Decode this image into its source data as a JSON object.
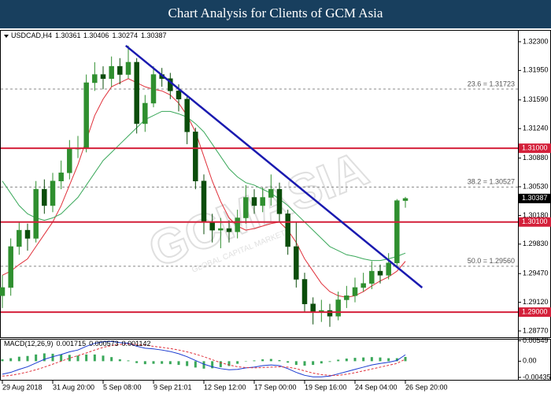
{
  "header": {
    "title": "Chart Analysis for Clients of GCM Asia"
  },
  "watermark": {
    "main": "GCMASIA",
    "sub": "GLOBAL CAPITAL MARKETS"
  },
  "chart_data": [
    {
      "type": "candlestick",
      "symbol": "USDCAD,H4",
      "categories": [
        "29 Aug 2018",
        null,
        null,
        null,
        null,
        null,
        "31 Aug 20:00",
        null,
        null,
        null,
        null,
        null,
        "5 Sep 08:00",
        null,
        null,
        null,
        null,
        null,
        "9 Sep 21:01",
        null,
        null,
        null,
        null,
        null,
        "12 Sep 12:00",
        null,
        null,
        null,
        null,
        null,
        "17 Sep 00:00",
        null,
        null,
        null,
        null,
        null,
        "19 Sep 16:00",
        null,
        null,
        null,
        null,
        null,
        "24 Sep 04:00",
        null,
        null,
        null,
        null,
        null,
        "26 Sep 20:00"
      ],
      "open": [
        1.292,
        1.293,
        1.298,
        1.3,
        1.299,
        1.305,
        1.303,
        1.306,
        1.307,
        1.31,
        1.31,
        1.318,
        1.319,
        1.3185,
        1.32,
        1.319,
        1.3205,
        1.313,
        1.3155,
        1.319,
        1.3185,
        1.317,
        1.316,
        1.312,
        1.306,
        1.301,
        1.3,
        1.3002,
        1.2998,
        1.3015,
        1.304,
        1.303,
        1.304,
        1.305,
        1.302,
        1.298,
        1.294,
        1.291,
        1.29,
        1.2902,
        1.2895,
        1.2915,
        1.292,
        1.293,
        1.2935,
        1.295,
        1.2945,
        1.296,
        1.30361
      ],
      "high": [
        1.2945,
        1.299,
        1.301,
        1.3008,
        1.306,
        1.3062,
        1.307,
        1.3085,
        1.311,
        1.3115,
        1.319,
        1.3205,
        1.32,
        1.3212,
        1.321,
        1.32252,
        1.321,
        1.3165,
        1.32,
        1.3198,
        1.3192,
        1.3178,
        1.3165,
        1.3125,
        1.3068,
        1.302,
        1.3015,
        1.3012,
        1.3025,
        1.3055,
        1.305,
        1.3052,
        1.3068,
        1.3058,
        1.3025,
        1.301,
        1.2948,
        1.2918,
        1.2915,
        1.291,
        1.2925,
        1.2932,
        1.2942,
        1.2948,
        1.2962,
        1.2958,
        1.2972,
        1.3038,
        1.30406
      ],
      "low": [
        1.2905,
        1.292,
        1.297,
        1.2975,
        1.2985,
        1.302,
        1.3022,
        1.305,
        1.3062,
        1.3088,
        1.3095,
        1.317,
        1.3172,
        1.3175,
        1.3178,
        1.3185,
        1.3118,
        1.312,
        1.315,
        1.3175,
        1.316,
        1.3145,
        1.3105,
        1.305,
        1.2995,
        1.2985,
        1.2978,
        1.2985,
        1.299,
        1.3008,
        1.302,
        1.3022,
        1.303,
        1.301,
        1.297,
        1.293,
        1.29,
        1.2885,
        1.2888,
        1.2882,
        1.289,
        1.2905,
        1.2912,
        1.2925,
        1.2928,
        1.2935,
        1.294,
        1.2955,
        1.30274
      ],
      "close": [
        1.293,
        1.298,
        1.3,
        1.299,
        1.305,
        1.303,
        1.306,
        1.307,
        1.31,
        1.31,
        1.318,
        1.319,
        1.3185,
        1.32,
        1.319,
        1.3205,
        1.313,
        1.3155,
        1.319,
        1.3185,
        1.317,
        1.316,
        1.312,
        1.306,
        1.301,
        1.3,
        1.3002,
        1.2998,
        1.3015,
        1.304,
        1.303,
        1.304,
        1.305,
        1.302,
        1.298,
        1.294,
        1.291,
        1.29,
        1.2902,
        1.2895,
        1.2915,
        1.292,
        1.293,
        1.2935,
        1.295,
        1.2945,
        1.296,
        1.30361,
        1.30387
      ],
      "bull_color": "#2f8f2f",
      "bear_color": "#0b4d0b",
      "moving_averages": [
        {
          "color": "#e0303a",
          "values": [
            1.2945,
            1.295,
            1.2958,
            1.2965,
            1.298,
            1.2995,
            1.301,
            1.303,
            1.3055,
            1.308,
            1.311,
            1.314,
            1.316,
            1.3175,
            1.318,
            1.3185,
            1.318,
            1.3175,
            1.3172,
            1.317,
            1.3165,
            1.3155,
            1.314,
            1.312,
            1.309,
            1.306,
            1.3035,
            1.3015,
            1.3005,
            1.3,
            1.3002,
            1.3005,
            1.3008,
            1.301,
            1.3,
            1.2985,
            1.2965,
            1.295,
            1.2935,
            1.2925,
            1.292,
            1.2918,
            1.292,
            1.2925,
            1.2932,
            1.2938,
            1.2943,
            1.295,
            1.2962
          ]
        },
        {
          "color": "#3aa85a",
          "values": [
            1.306,
            1.3045,
            1.303,
            1.302,
            1.3015,
            1.3012,
            1.3015,
            1.302,
            1.303,
            1.304,
            1.3055,
            1.307,
            1.3085,
            1.3095,
            1.3105,
            1.3115,
            1.3125,
            1.3135,
            1.314,
            1.3145,
            1.3145,
            1.3142,
            1.3138,
            1.313,
            1.312,
            1.3105,
            1.309,
            1.3075,
            1.3065,
            1.3058,
            1.3055,
            1.305,
            1.3045,
            1.3038,
            1.303,
            1.302,
            1.301,
            1.3,
            1.299,
            1.298,
            1.2975,
            1.297,
            1.2968,
            1.2965,
            1.2963,
            1.2963,
            1.2965,
            1.2968,
            1.2972
          ]
        }
      ],
      "trendline": {
        "color": "#1a1ab0",
        "x": [
          14.7,
          50
        ],
        "y": [
          1.32252,
          1.29299
        ]
      },
      "levels": [
        {
          "value": 1.31,
          "label": "1.31000"
        },
        {
          "value": 1.301,
          "label": "1.30100"
        },
        {
          "value": 1.29,
          "label": "1.29000"
        }
      ],
      "level_color": "#d4203a",
      "fibonacci": [
        {
          "value": 1.31723,
          "label": "23.6 = 1.31723"
        },
        {
          "value": 1.30527,
          "label": "38.2 = 1.30527"
        },
        {
          "value": 1.2956,
          "label": "50.0 = 1.29560"
        }
      ],
      "ylim": [
        1.28693,
        1.32444
      ],
      "yticks": [
        {
          "value": 1.323,
          "label": "1.32300"
        },
        {
          "value": 1.3195,
          "label": "1.31950"
        },
        {
          "value": 1.3159,
          "label": "1.31590"
        },
        {
          "value": 1.3124,
          "label": "1.31240"
        },
        {
          "value": 1.3088,
          "label": "1.30880"
        },
        {
          "value": 1.3053,
          "label": "1.30530"
        },
        {
          "value": 1.3018,
          "label": "1.30180"
        },
        {
          "value": 1.2983,
          "label": "1.29830"
        },
        {
          "value": 1.2947,
          "label": "1.29470"
        },
        {
          "value": 1.2912,
          "label": "1.29120"
        },
        {
          "value": 1.2877,
          "label": "1.28770"
        }
      ]
    },
    {
      "type": "macd",
      "label": "MACD(12,26,9)",
      "histogram_color": "#3aa85a",
      "main_color": "#1a3ad0",
      "signal_color": "#e0303a",
      "histogram": [
        0.0005,
        0.0008,
        0.0012,
        0.0014,
        0.0018,
        0.0021,
        0.002,
        0.0018,
        0.0017,
        0.0015,
        0.0018,
        0.0018,
        0.0015,
        0.0011,
        0.0005,
        0.0002,
        -0.0005,
        -0.0008,
        -0.0007,
        -0.0007,
        -0.0008,
        -0.001,
        -0.0013,
        -0.0017,
        -0.002,
        -0.0019,
        -0.0016,
        -0.0013,
        -0.0007,
        -0.0001,
        0.0002,
        0.0005,
        0.0006,
        0.0003,
        -0.0004,
        -0.001,
        -0.0012,
        -0.001,
        -0.0006,
        -0.0002,
        0.0004,
        0.0007,
        0.0009,
        0.001,
        0.0011,
        0.001,
        0.0008,
        0.0008,
        0.001142
      ],
      "main": [
        -0.0035,
        -0.003,
        -0.0022,
        -0.0015,
        -0.0005,
        0.0005,
        0.0012,
        0.0018,
        0.0025,
        0.003,
        0.004,
        0.0048,
        0.0052,
        0.0053,
        0.005,
        0.0048,
        0.004,
        0.0035,
        0.0033,
        0.003,
        0.0026,
        0.002,
        0.0012,
        0.0002,
        -0.0008,
        -0.0015,
        -0.002,
        -0.0023,
        -0.0022,
        -0.0018,
        -0.0016,
        -0.0012,
        -0.001,
        -0.0012,
        -0.002,
        -0.003,
        -0.0038,
        -0.0042,
        -0.0042,
        -0.004,
        -0.0034,
        -0.0028,
        -0.0022,
        -0.0016,
        -0.001,
        -0.0006,
        -0.0003,
        0.0002,
        0.001715
      ],
      "signal": [
        -0.004,
        -0.0038,
        -0.0034,
        -0.0029,
        -0.0023,
        -0.0016,
        -0.0008,
        0.0,
        0.0008,
        0.0015,
        0.0022,
        0.003,
        0.0037,
        0.0042,
        0.0045,
        0.0046,
        0.0045,
        0.0043,
        0.004,
        0.0037,
        0.0034,
        0.003,
        0.0025,
        0.0019,
        0.0012,
        0.0004,
        -0.0004,
        -0.001,
        -0.0015,
        -0.0017,
        -0.0018,
        -0.0017,
        -0.0016,
        -0.0015,
        -0.0016,
        -0.002,
        -0.0026,
        -0.0032,
        -0.0036,
        -0.0038,
        -0.0038,
        -0.0035,
        -0.0031,
        -0.0026,
        -0.0021,
        -0.0016,
        -0.0011,
        -0.0006,
        0.000573
      ],
      "ylim": [
        -0.005,
        0.006
      ],
      "yticks": [
        0.00549,
        {
          "value": 0,
          "label": "0.00"
        },
        -0.00435
      ]
    }
  ]
}
